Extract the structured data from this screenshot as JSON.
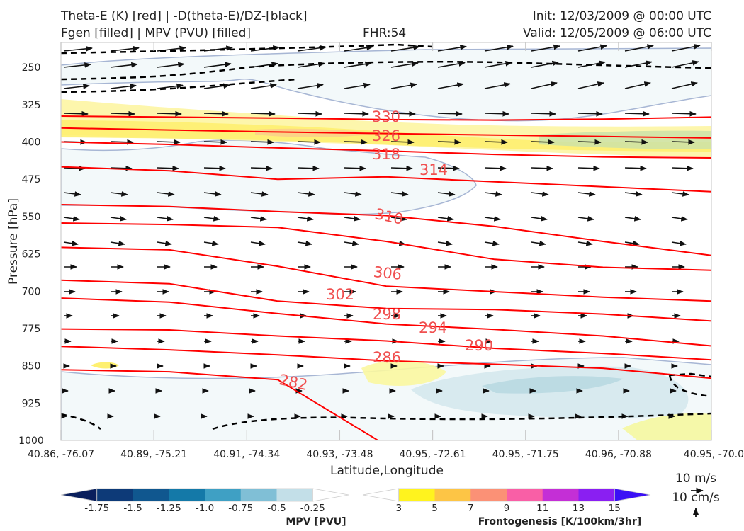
{
  "header": {
    "title_line1": "Theta-E (K) [red] | -D(theta-E)/DZ-[black]",
    "title_line2": "Fgen [filled] | MPV (PVU) [filled]",
    "forecast_hour": "FHR:54",
    "init": "Init: 12/03/2009 @ 00:00 UTC",
    "valid": "Valid: 12/05/2009 @ 06:00 UTC"
  },
  "chart_data": {
    "type": "cross-section",
    "xlabel": "Latitude,Longitude",
    "ylabel": "Pressure [hPa]",
    "x_ticks": [
      "40.86, -76.07",
      "40.89, -75.21",
      "40.91, -74.34",
      "40.93, -73.48",
      "40.95, -72.61",
      "40.95, -71.75",
      "40.96, -70.88",
      "40.95, -70.0"
    ],
    "y_ticks": [
      250,
      325,
      400,
      475,
      550,
      625,
      700,
      775,
      850,
      925,
      1000
    ],
    "ylim": [
      1000,
      200
    ],
    "theta_e_contours": [
      {
        "label": "330",
        "level": 330,
        "pressure": [
          348,
          350,
          352,
          355,
          356,
          354,
          350
        ]
      },
      {
        "label": "326",
        "level": 326,
        "pressure": [
          372,
          376,
          380,
          383,
          386,
          389,
          392
        ]
      },
      {
        "label": "318",
        "level": 318,
        "pressure": [
          400,
          405,
          412,
          418,
          425,
          430,
          432
        ]
      },
      {
        "label": "314",
        "level": 314,
        "pressure": [
          450,
          458,
          475,
          470,
          480,
          490,
          500
        ]
      },
      {
        "label": "310",
        "level": 310,
        "pressure": [
          526,
          530,
          540,
          548,
          570,
          600,
          628
        ]
      },
      {
        "label": "306",
        "level": 306,
        "pressure": [
          563,
          566,
          572,
          600,
          636,
          652,
          658
        ]
      },
      {
        "label": "302",
        "level": 302,
        "pressure": [
          612,
          617,
          650,
          690,
          701,
          712,
          720
        ]
      },
      {
        "label": "298",
        "level": 298,
        "pressure": [
          678,
          685,
          720,
          735,
          737,
          746,
          760
        ]
      },
      {
        "label": "294",
        "level": 294,
        "pressure": [
          714,
          722,
          745,
          766,
          777,
          790,
          810
        ]
      },
      {
        "label": "290",
        "level": 290,
        "pressure": [
          776,
          778,
          790,
          800,
          815,
          825,
          838
        ]
      },
      {
        "label": "286",
        "level": 286,
        "pressure": [
          811,
          818,
          828,
          840,
          847,
          855,
          875
        ]
      },
      {
        "label": "282",
        "level": 282,
        "pressure": [
          858,
          862,
          878,
          1010,
          1010,
          1010,
          1010
        ]
      }
    ],
    "mpv_colorbar": {
      "title": "MPV [PVU]",
      "ticks": [
        "-1.75",
        "-1.5",
        "-1.25",
        "-1.0",
        "-0.75",
        "-0.5",
        "-0.25"
      ],
      "colors": [
        "#0a1f5c",
        "#0d3a78",
        "#10578f",
        "#1479a8",
        "#3fa0c4",
        "#80bfd6",
        "#c3dfe8",
        "#ffffff"
      ]
    },
    "fgen_colorbar": {
      "title": "Frontogenesis [K/100km/3hr]",
      "ticks": [
        "3",
        "5",
        "7",
        "9",
        "11",
        "13",
        "15"
      ],
      "colors": [
        "#ffffff",
        "#fff31e",
        "#fdc545",
        "#fb9176",
        "#f95fa6",
        "#c42fd6",
        "#8a1ff2",
        "#3a10f5"
      ]
    },
    "wind_reference": {
      "horizontal": "10 m/s",
      "vertical": "10 cm/s"
    }
  }
}
